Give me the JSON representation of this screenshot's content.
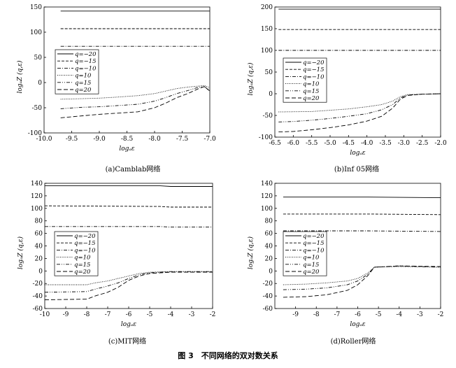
{
  "figure_caption": "图 3　不同网络的双对数关系",
  "chart_data": [
    {
      "type": "line",
      "caption": "(a)Camblab网络",
      "xlabel": "logₐε",
      "ylabel": "logₐZ (q,ε)",
      "xlim": [
        -10.0,
        -7.0
      ],
      "ylim": [
        -100,
        150
      ],
      "xticks": [
        "-10.0",
        "-9.5",
        "-9.0",
        "-8.5",
        "-8.0",
        "-7.5",
        "-7.0"
      ],
      "xtick_values": [
        -10.0,
        -9.5,
        -9.0,
        -8.5,
        -8.0,
        -7.5,
        -7.0
      ],
      "yticks": [
        "150",
        "100",
        "50",
        "0",
        "-50",
        "-100"
      ],
      "ytick_values": [
        150,
        100,
        50,
        0,
        -50,
        -100
      ],
      "legend_position": "left",
      "series": [
        {
          "name": "q=−20",
          "style": "solid",
          "points": [
            [
              -9.7,
              142
            ],
            [
              -7.0,
              142
            ]
          ]
        },
        {
          "name": "q=−15",
          "style": "dash",
          "points": [
            [
              -9.7,
              107
            ],
            [
              -7.0,
              107
            ]
          ]
        },
        {
          "name": "q=−10",
          "style": "dashdot",
          "points": [
            [
              -9.7,
              72
            ],
            [
              -7.0,
              72
            ]
          ]
        },
        {
          "name": "q=10",
          "style": "dot",
          "points": [
            [
              -9.7,
              -33
            ],
            [
              -9.3,
              -32
            ],
            [
              -9.0,
              -31
            ],
            [
              -8.7,
              -29
            ],
            [
              -8.3,
              -26
            ],
            [
              -8.0,
              -22
            ],
            [
              -7.8,
              -17
            ],
            [
              -7.6,
              -12
            ],
            [
              -7.4,
              -9
            ],
            [
              -7.2,
              -7
            ],
            [
              -7.1,
              -6
            ],
            [
              -7.0,
              -10
            ]
          ]
        },
        {
          "name": "q=15",
          "style": "dashdotdot",
          "points": [
            [
              -9.7,
              -52
            ],
            [
              -9.3,
              -49
            ],
            [
              -9.0,
              -48
            ],
            [
              -8.7,
              -46
            ],
            [
              -8.3,
              -43
            ],
            [
              -8.0,
              -37
            ],
            [
              -7.8,
              -30
            ],
            [
              -7.6,
              -22
            ],
            [
              -7.4,
              -16
            ],
            [
              -7.2,
              -9
            ],
            [
              -7.1,
              -8
            ],
            [
              -7.0,
              -15
            ]
          ]
        },
        {
          "name": "q=20",
          "style": "longdash",
          "points": [
            [
              -9.7,
              -70
            ],
            [
              -9.3,
              -66
            ],
            [
              -9.0,
              -63
            ],
            [
              -8.7,
              -61
            ],
            [
              -8.3,
              -58
            ],
            [
              -8.0,
              -50
            ],
            [
              -7.8,
              -41
            ],
            [
              -7.6,
              -30
            ],
            [
              -7.4,
              -22
            ],
            [
              -7.2,
              -12
            ],
            [
              -7.1,
              -8
            ],
            [
              -7.0,
              -17
            ]
          ]
        }
      ]
    },
    {
      "type": "line",
      "caption": "(b)Inf 05网络",
      "xlabel": "logₐε",
      "ylabel": "logₐZ (q,ε)",
      "xlim": [
        -6.5,
        -2.0
      ],
      "ylim": [
        -100,
        200
      ],
      "xticks": [
        "-6.5",
        "-6.0",
        "-5.5",
        "-5.0",
        "-4.5",
        "-4.0",
        "-3.5",
        "-3.0",
        "-2.5",
        "-2.0"
      ],
      "xtick_values": [
        -6.5,
        -6.0,
        -5.5,
        -5.0,
        -4.5,
        -4.0,
        -3.5,
        -3.0,
        -2.5,
        -2.0
      ],
      "yticks": [
        "200",
        "150",
        "100",
        "50",
        "0",
        "-50",
        "-100"
      ],
      "ytick_values": [
        200,
        150,
        100,
        50,
        0,
        -50,
        -100
      ],
      "legend_position": "center",
      "series": [
        {
          "name": "q=−20",
          "style": "solid",
          "points": [
            [
              -6.4,
              195
            ],
            [
              -2.0,
              195
            ]
          ]
        },
        {
          "name": "q=−15",
          "style": "dash",
          "points": [
            [
              -6.4,
              148
            ],
            [
              -2.0,
              148
            ]
          ]
        },
        {
          "name": "q=−10",
          "style": "dashdot",
          "points": [
            [
              -6.4,
              100
            ],
            [
              -2.0,
              100
            ]
          ]
        },
        {
          "name": "q=10",
          "style": "dot",
          "points": [
            [
              -6.4,
              -42
            ],
            [
              -5.5,
              -41
            ],
            [
              -5.0,
              -38
            ],
            [
              -4.5,
              -35
            ],
            [
              -4.0,
              -30
            ],
            [
              -3.6,
              -25
            ],
            [
              -3.3,
              -17
            ],
            [
              -3.1,
              -7
            ],
            [
              -2.9,
              -2
            ],
            [
              -2.5,
              -1
            ],
            [
              -2.0,
              0
            ]
          ]
        },
        {
          "name": "q=15",
          "style": "dashdotdot",
          "points": [
            [
              -6.4,
              -65
            ],
            [
              -6.0,
              -64
            ],
            [
              -5.5,
              -61
            ],
            [
              -5.0,
              -57
            ],
            [
              -4.5,
              -52
            ],
            [
              -4.0,
              -46
            ],
            [
              -3.6,
              -37
            ],
            [
              -3.3,
              -25
            ],
            [
              -3.1,
              -10
            ],
            [
              -2.9,
              -3
            ],
            [
              -2.5,
              -1
            ],
            [
              -2.0,
              0
            ]
          ]
        },
        {
          "name": "q=20",
          "style": "longdash",
          "points": [
            [
              -6.4,
              -88
            ],
            [
              -6.0,
              -87
            ],
            [
              -5.5,
              -83
            ],
            [
              -5.0,
              -78
            ],
            [
              -4.5,
              -72
            ],
            [
              -4.0,
              -63
            ],
            [
              -3.6,
              -52
            ],
            [
              -3.3,
              -33
            ],
            [
              -3.1,
              -13
            ],
            [
              -2.9,
              -4
            ],
            [
              -2.5,
              -1
            ],
            [
              -2.0,
              0
            ]
          ]
        }
      ]
    },
    {
      "type": "line",
      "caption": "(c)MIT网络",
      "xlabel": "logₐε",
      "ylabel": "logₐZ (q,ε)",
      "xlim": [
        -10,
        -2
      ],
      "ylim": [
        -60,
        140
      ],
      "xticks": [
        "-10",
        "-9",
        "-8",
        "-7",
        "-6",
        "-5",
        "-4",
        "-3",
        "-2"
      ],
      "xtick_values": [
        -10,
        -9,
        -8,
        -7,
        -6,
        -5,
        -4,
        -3,
        -2
      ],
      "yticks": [
        "140",
        "120",
        "100",
        "80",
        "60",
        "40",
        "20",
        "0",
        "-20",
        "-40",
        "-60"
      ],
      "ytick_values": [
        140,
        120,
        100,
        80,
        60,
        40,
        20,
        0,
        -20,
        -40,
        -60
      ],
      "legend_position": "center",
      "series": [
        {
          "name": "q=−20",
          "style": "solid",
          "points": [
            [
              -10,
              136
            ],
            [
              -4.5,
              136
            ],
            [
              -4,
              135
            ],
            [
              -2,
              135
            ]
          ]
        },
        {
          "name": "q=−15",
          "style": "dash",
          "points": [
            [
              -10,
              104
            ],
            [
              -4.5,
              103
            ],
            [
              -4,
              102
            ],
            [
              -2,
              102
            ]
          ]
        },
        {
          "name": "q=−10",
          "style": "dashdot",
          "points": [
            [
              -10,
              71
            ],
            [
              -4.5,
              71
            ],
            [
              -4,
              70
            ],
            [
              -2,
              70
            ]
          ]
        },
        {
          "name": "q=10",
          "style": "dot",
          "points": [
            [
              -10,
              -22
            ],
            [
              -8,
              -22
            ],
            [
              -7.6,
              -19
            ],
            [
              -7,
              -16
            ],
            [
              -6.5,
              -12
            ],
            [
              -6,
              -8
            ],
            [
              -5.5,
              -4
            ],
            [
              -5,
              -2
            ],
            [
              -4,
              -1
            ],
            [
              -2,
              -1
            ]
          ]
        },
        {
          "name": "q=15",
          "style": "dashdotdot",
          "points": [
            [
              -10,
              -34
            ],
            [
              -8,
              -33
            ],
            [
              -7.6,
              -29
            ],
            [
              -7,
              -24
            ],
            [
              -6.5,
              -19
            ],
            [
              -6,
              -12
            ],
            [
              -5.5,
              -6
            ],
            [
              -5,
              -3
            ],
            [
              -4,
              -1
            ],
            [
              -2,
              -1
            ]
          ]
        },
        {
          "name": "q=20",
          "style": "longdash",
          "points": [
            [
              -10,
              -46
            ],
            [
              -8,
              -45
            ],
            [
              -7.6,
              -40
            ],
            [
              -7,
              -34
            ],
            [
              -6.5,
              -26
            ],
            [
              -6,
              -15
            ],
            [
              -5.5,
              -8
            ],
            [
              -5,
              -4
            ],
            [
              -4,
              -2
            ],
            [
              -2,
              -2
            ]
          ]
        }
      ]
    },
    {
      "type": "line",
      "caption": "(d)Roller网络",
      "xlabel": "logₐε",
      "ylabel": "logₐZ (q,ε)",
      "xlim": [
        -10,
        -2
      ],
      "ylim": [
        -60,
        140
      ],
      "xticks": [
        "-9",
        "-8",
        "-7",
        "-6",
        "-5",
        "-4",
        "-3",
        "-2"
      ],
      "xtick_values": [
        -9,
        -8,
        -7,
        -6,
        -5,
        -4,
        -3,
        -2
      ],
      "yticks": [
        "140",
        "120",
        "100",
        "80",
        "60",
        "40",
        "20",
        "0",
        "-20",
        "-40",
        "-60"
      ],
      "ytick_values": [
        140,
        120,
        100,
        80,
        60,
        40,
        20,
        0,
        -20,
        -40,
        -60
      ],
      "legend_position": "center",
      "series": [
        {
          "name": "q=−20",
          "style": "solid",
          "points": [
            [
              -9.6,
              118
            ],
            [
              -5.5,
              118
            ],
            [
              -2,
              117
            ]
          ]
        },
        {
          "name": "q=−15",
          "style": "dash",
          "points": [
            [
              -9.6,
              91
            ],
            [
              -5.5,
              91
            ],
            [
              -2,
              90
            ]
          ]
        },
        {
          "name": "q=−10",
          "style": "dashdot",
          "points": [
            [
              -9.6,
              64
            ],
            [
              -5.5,
              64
            ],
            [
              -2,
              63
            ]
          ]
        },
        {
          "name": "q=10",
          "style": "dot",
          "points": [
            [
              -9.6,
              -22
            ],
            [
              -8.5,
              -21
            ],
            [
              -7.5,
              -19
            ],
            [
              -6.5,
              -16
            ],
            [
              -6,
              -12
            ],
            [
              -5.5,
              -3
            ],
            [
              -5.2,
              6
            ],
            [
              -4,
              7
            ],
            [
              -2,
              6
            ]
          ]
        },
        {
          "name": "q=15",
          "style": "dashdotdot",
          "points": [
            [
              -9.6,
              -30
            ],
            [
              -8.5,
              -29
            ],
            [
              -7.5,
              -27
            ],
            [
              -6.5,
              -22
            ],
            [
              -6,
              -16
            ],
            [
              -5.5,
              -5
            ],
            [
              -5.2,
              6
            ],
            [
              -4,
              8
            ],
            [
              -2,
              6
            ]
          ]
        },
        {
          "name": "q=20",
          "style": "longdash",
          "points": [
            [
              -9.6,
              -42
            ],
            [
              -8.5,
              -41
            ],
            [
              -7.5,
              -38
            ],
            [
              -6.5,
              -31
            ],
            [
              -6,
              -22
            ],
            [
              -5.5,
              -7
            ],
            [
              -5.2,
              6
            ],
            [
              -4,
              8
            ],
            [
              -2,
              7
            ]
          ]
        }
      ]
    }
  ]
}
